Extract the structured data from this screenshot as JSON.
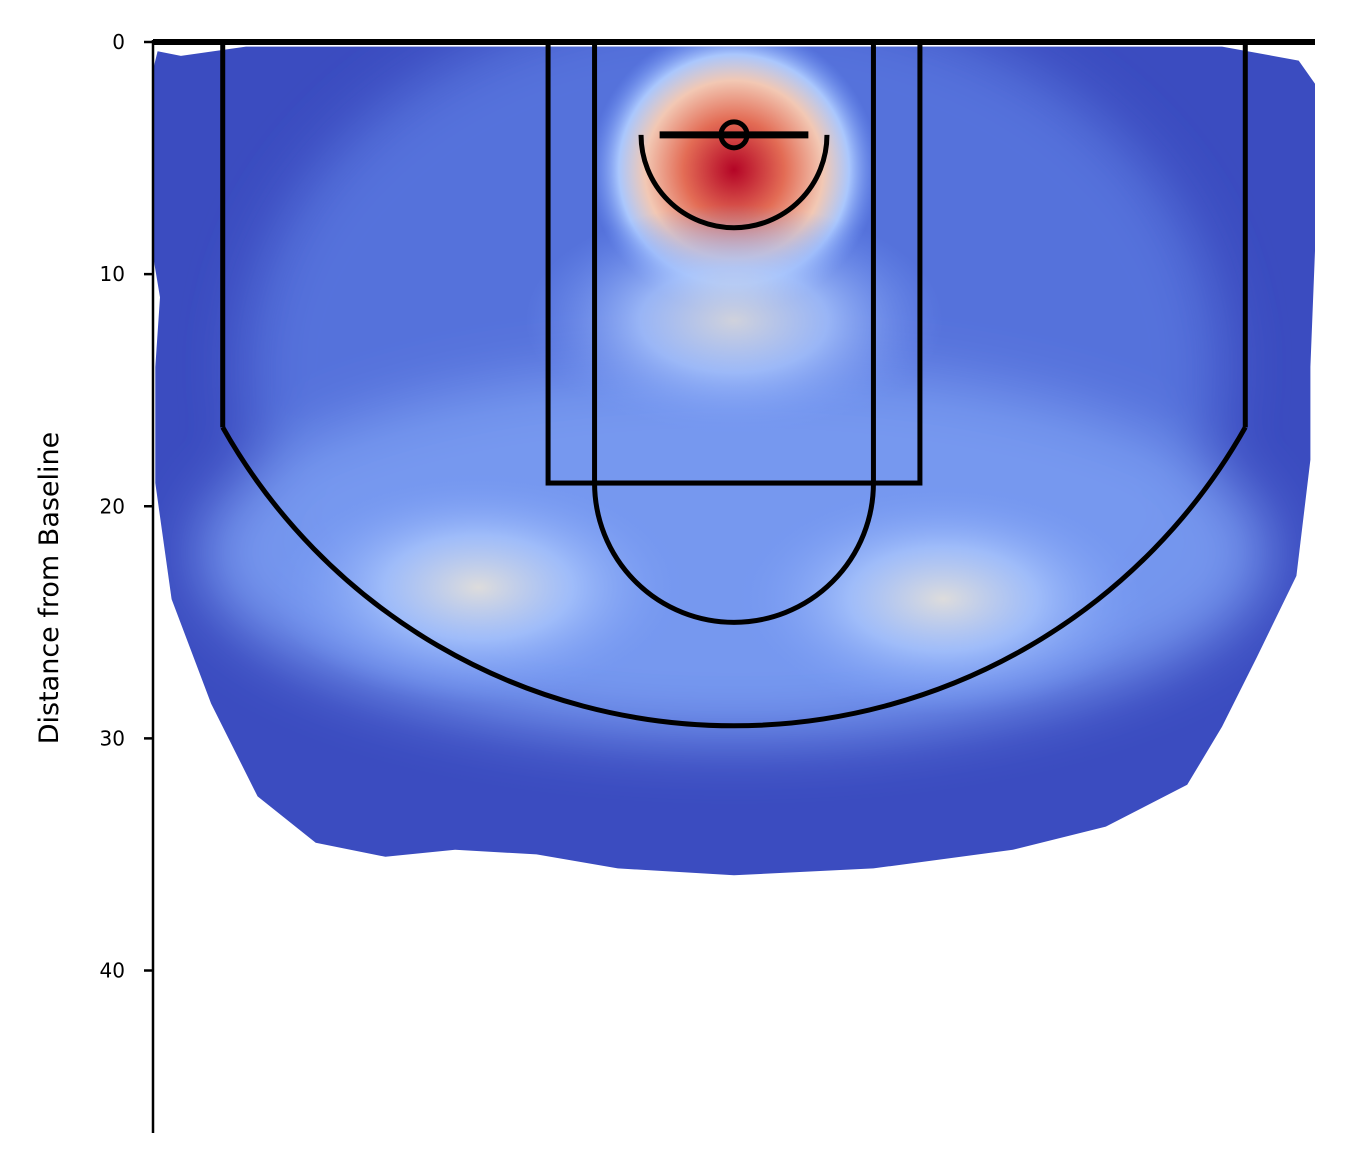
{
  "chart_data": {
    "type": "heatmap",
    "title": "",
    "xlabel": "",
    "ylabel": "Distance from Baseline",
    "ylim": [
      0,
      47
    ],
    "xlim": [
      -25,
      25
    ],
    "y_axis_inverted": true,
    "y_ticks": [
      "0",
      "10",
      "20",
      "30",
      "40"
    ],
    "y_tick_values": [
      0,
      10,
      20,
      30,
      40
    ],
    "colormap": "coolwarm",
    "colors": {
      "low": "#3b4cc0",
      "mid": "#dddcdc",
      "high": "#b40426"
    },
    "hotspots": [
      {
        "x": 0,
        "y": 5.5,
        "density": 1.0
      },
      {
        "x": -11,
        "y": 23.5,
        "density": 0.45
      },
      {
        "x": 9,
        "y": 24,
        "density": 0.4
      },
      {
        "x": 0,
        "y": 12,
        "density": 0.3
      }
    ],
    "court": {
      "baseline_y": 0,
      "hoop": {
        "x": 0,
        "y": 4
      },
      "lane_outer_width": 16,
      "lane_inner_width": 12,
      "free_throw_line_y": 19,
      "free_throw_circle_radius": 6,
      "restricted_area_radius": 4,
      "three_point_radius": 25.25,
      "corner_three_x": 22,
      "corner_three_y": 16.6
    }
  }
}
